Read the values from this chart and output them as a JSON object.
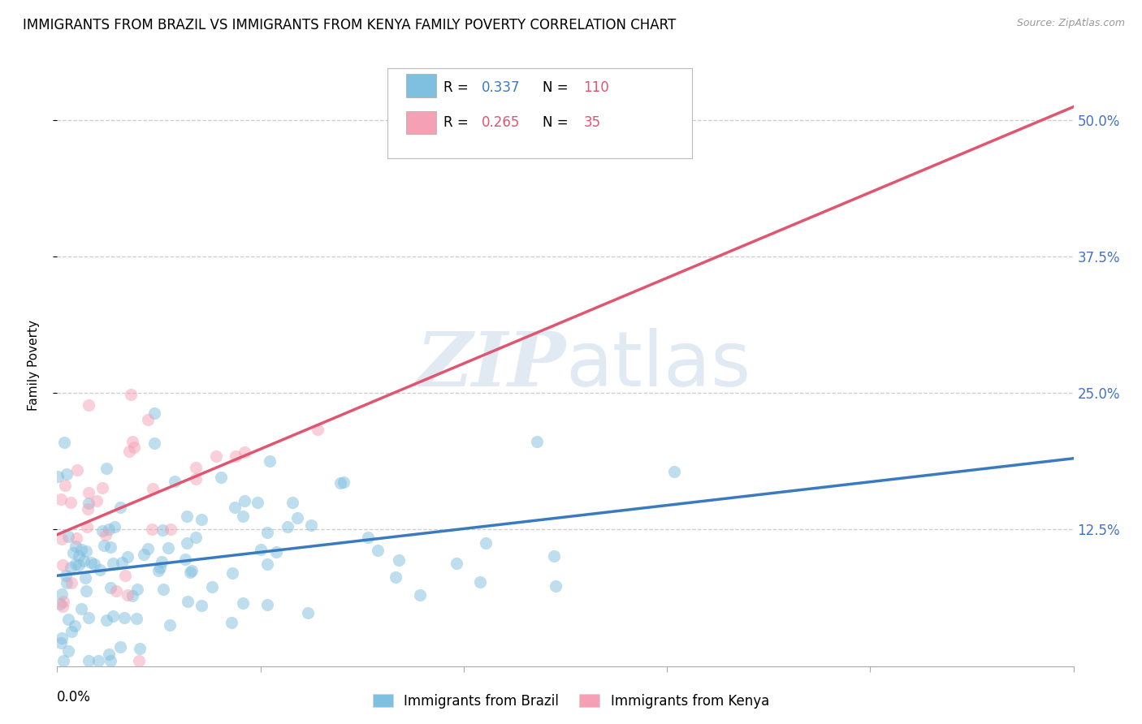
{
  "title": "IMMIGRANTS FROM BRAZIL VS IMMIGRANTS FROM KENYA FAMILY POVERTY CORRELATION CHART",
  "source": "Source: ZipAtlas.com",
  "ylabel": "Family Poverty",
  "ytick_labels": [
    "50.0%",
    "37.5%",
    "25.0%",
    "12.5%"
  ],
  "ytick_values": [
    0.5,
    0.375,
    0.25,
    0.125
  ],
  "xmin": 0.0,
  "xmax": 0.25,
  "ymin": 0.0,
  "ymax": 0.55,
  "brazil_color": "#7fbfdf",
  "kenya_color": "#f5a0b5",
  "brazil_line_color": "#3a7abf",
  "kenya_line_color": "#e05570",
  "brazil_R": 0.337,
  "brazil_N": 110,
  "kenya_R": 0.265,
  "kenya_N": 35,
  "background_color": "#ffffff",
  "grid_color": "#cccccc",
  "title_fontsize": 12,
  "label_fontsize": 11,
  "tick_fontsize": 12,
  "right_tick_color": "#4472c4",
  "scatter_alpha": 0.5,
  "scatter_size": 120,
  "watermark_color": "#dce6f0"
}
